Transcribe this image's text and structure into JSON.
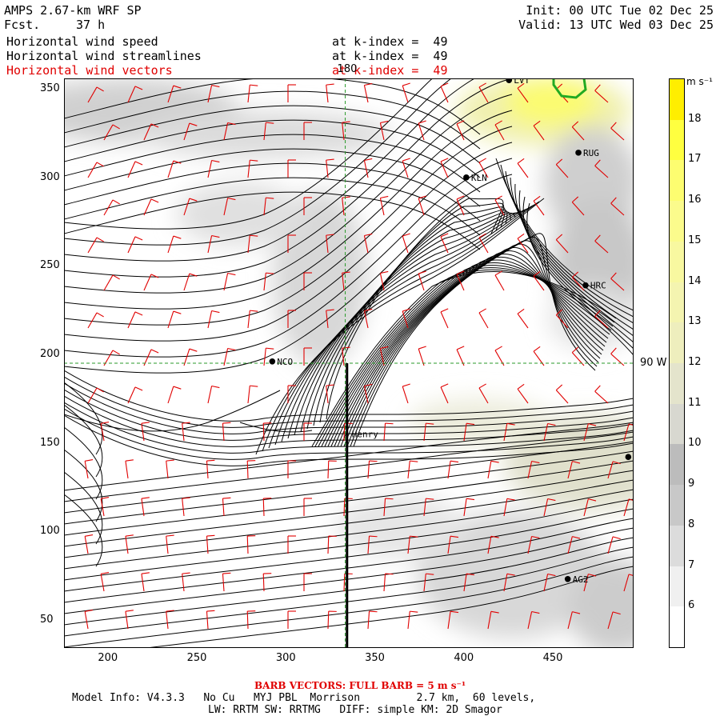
{
  "header": {
    "model": "AMPS 2.67-km WRF SP",
    "fcst_label": "Fcst.",
    "fcst_value": "37 h",
    "init": "Init: 00 UTC Tue 02 Dec 25",
    "valid": "Valid: 13 UTC Wed 03 Dec 25",
    "fields": [
      {
        "name": "Horizontal wind speed",
        "level": "at k-index =  49",
        "color": "#000000"
      },
      {
        "name": "Horizontal wind streamlines",
        "level": "at k-index =  49",
        "color": "#000000"
      },
      {
        "name": "Horizontal wind vectors",
        "level": "at k-index =  49",
        "color": "#e00000"
      }
    ]
  },
  "map": {
    "x_ticks": [
      "200",
      "250",
      "300",
      "350",
      "400",
      "450"
    ],
    "y_ticks": [
      "350",
      "300",
      "250",
      "200",
      "150",
      "100",
      "50"
    ],
    "x_range": [
      176,
      496
    ],
    "y_range": [
      34,
      356
    ],
    "meridian_label": "180",
    "parallel_label": "90 W",
    "meridian_x": 334,
    "parallel_y": 195,
    "stations": [
      {
        "id": "LVT",
        "x": 426,
        "y": 355
      },
      {
        "id": "RUG",
        "x": 465,
        "y": 314
      },
      {
        "id": "KLN",
        "x": 402,
        "y": 300
      },
      {
        "id": "HRC",
        "x": 469,
        "y": 239
      },
      {
        "id": "NCO",
        "x": 293,
        "y": 196
      },
      {
        "id": "Henry",
        "x": 335,
        "y": 155
      },
      {
        "id": "AG2",
        "x": 459,
        "y": 73
      }
    ],
    "edge_station": {
      "x": 493,
      "y": 142
    },
    "line_color": "#000000",
    "barb_color": "#e00000",
    "coast_color": "#22aa22"
  },
  "colorbar": {
    "unit": "m s⁻¹",
    "levels": [
      "6",
      "7",
      "8",
      "9",
      "10",
      "11",
      "12",
      "13",
      "14",
      "15",
      "16",
      "17",
      "18"
    ],
    "colors": [
      "#ffffff",
      "#f0f0f0",
      "#dcdcdc",
      "#c8c8c8",
      "#bcbcbc",
      "#d8d8d0",
      "#e4e4cc",
      "#eeeebd",
      "#f4f4b0",
      "#f8f8a0",
      "#fbfb8c",
      "#fdfd70",
      "#ffff40",
      "#ffee00"
    ]
  },
  "footer": {
    "barb_note": "BARB VECTORS: FULL BARB = 5 m s⁻¹",
    "model_info": "Model Info: V4.3.3   No Cu   MYJ PBL  Morrison         2.7 km,  60 levels,",
    "physics": "LW: RRTM SW: RRTMG   DIFF: simple KM: 2D Smagor"
  }
}
